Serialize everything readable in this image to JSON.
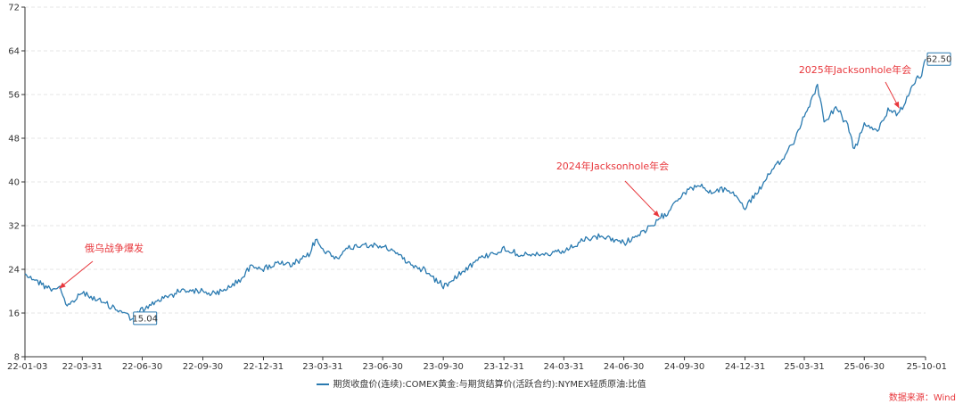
{
  "chart_data": {
    "type": "line",
    "title": "",
    "xlabel": "",
    "ylabel": "",
    "ylim": [
      8,
      72
    ],
    "y_ticks": [
      8,
      16,
      24,
      32,
      40,
      48,
      56,
      64,
      72
    ],
    "x_ticks": [
      "22-01-03",
      "22-03-31",
      "22-06-30",
      "22-09-30",
      "22-12-31",
      "23-03-31",
      "23-06-30",
      "23-09-30",
      "23-12-31",
      "24-03-31",
      "24-06-30",
      "24-09-30",
      "24-12-31",
      "25-03-31",
      "25-06-30",
      "25-10-01"
    ],
    "grid": "horizontal dashed",
    "series": [
      {
        "name": "期货收盘价(连续):COMEX黄金:与期货结算价(活跃合约):NYMEX轻质原油:比值",
        "color": "#2a7ab0",
        "points": [
          [
            "22-01-03",
            23.2
          ],
          [
            "22-01-20",
            22.0
          ],
          [
            "22-02-10",
            20.4
          ],
          [
            "22-02-25",
            20.8
          ],
          [
            "22-03-08",
            17.0
          ],
          [
            "22-03-31",
            19.8
          ],
          [
            "22-04-20",
            18.6
          ],
          [
            "22-05-10",
            17.4
          ],
          [
            "22-05-31",
            16.2
          ],
          [
            "22-06-14",
            15.04
          ],
          [
            "22-06-30",
            16.5
          ],
          [
            "22-07-20",
            18.0
          ],
          [
            "22-08-10",
            19.2
          ],
          [
            "22-08-31",
            20.3
          ],
          [
            "22-09-30",
            20.0
          ],
          [
            "22-10-20",
            19.4
          ],
          [
            "22-11-10",
            20.8
          ],
          [
            "22-11-30",
            22.6
          ],
          [
            "22-12-15",
            25.0
          ],
          [
            "22-12-31",
            24.0
          ],
          [
            "23-01-20",
            25.2
          ],
          [
            "23-02-10",
            24.6
          ],
          [
            "23-03-10",
            26.5
          ],
          [
            "23-03-20",
            29.5
          ],
          [
            "23-03-31",
            27.6
          ],
          [
            "23-04-20",
            26.2
          ],
          [
            "23-05-10",
            27.8
          ],
          [
            "23-05-31",
            28.6
          ],
          [
            "23-06-30",
            28.0
          ],
          [
            "23-07-20",
            27.2
          ],
          [
            "23-08-10",
            25.0
          ],
          [
            "23-08-31",
            24.0
          ],
          [
            "23-09-15",
            22.4
          ],
          [
            "23-09-30",
            21.0
          ],
          [
            "23-10-20",
            22.8
          ],
          [
            "23-11-10",
            24.8
          ],
          [
            "23-11-30",
            26.4
          ],
          [
            "23-12-31",
            27.6
          ],
          [
            "24-01-20",
            27.0
          ],
          [
            "24-02-10",
            26.4
          ],
          [
            "24-03-10",
            26.8
          ],
          [
            "24-03-31",
            27.2
          ],
          [
            "24-04-20",
            28.6
          ],
          [
            "24-05-10",
            29.6
          ],
          [
            "24-05-31",
            30.0
          ],
          [
            "24-06-30",
            28.8
          ],
          [
            "24-07-20",
            30.2
          ],
          [
            "24-08-10",
            31.6
          ],
          [
            "24-08-31",
            34.0
          ],
          [
            "24-09-15",
            36.2
          ],
          [
            "24-09-30",
            38.2
          ],
          [
            "24-10-20",
            39.4
          ],
          [
            "24-11-10",
            38.0
          ],
          [
            "24-11-30",
            38.8
          ],
          [
            "24-12-15",
            37.8
          ],
          [
            "24-12-31",
            35.2
          ],
          [
            "25-01-20",
            38.4
          ],
          [
            "25-02-10",
            42.0
          ],
          [
            "25-02-28",
            44.4
          ],
          [
            "25-03-15",
            47.6
          ],
          [
            "25-03-31",
            52.0
          ],
          [
            "25-04-10",
            54.8
          ],
          [
            "25-04-20",
            57.8
          ],
          [
            "25-04-30",
            51.2
          ],
          [
            "25-05-20",
            53.6
          ],
          [
            "25-06-05",
            50.0
          ],
          [
            "25-06-15",
            46.0
          ],
          [
            "25-06-30",
            50.4
          ],
          [
            "25-07-20",
            49.4
          ],
          [
            "25-08-05",
            53.2
          ],
          [
            "25-08-20",
            52.6
          ],
          [
            "25-09-05",
            55.4
          ],
          [
            "25-09-15",
            58.6
          ],
          [
            "25-09-25",
            59.2
          ],
          [
            "25-10-01",
            62.5
          ]
        ]
      }
    ],
    "point_labels": [
      {
        "date": "22-06-14",
        "value": 15.04,
        "text": "15.04"
      },
      {
        "date": "25-10-01",
        "value": 62.5,
        "text": "62.50"
      }
    ],
    "annotations": [
      {
        "text": "俄乌战争爆发",
        "arrow_to": [
          "22-02-24",
          20.5
        ]
      },
      {
        "text": "2024年Jacksonhole年会",
        "arrow_to": [
          "24-08-23",
          33.6
        ]
      },
      {
        "text": "2025年Jacksonhole年会",
        "arrow_to": [
          "25-08-22",
          53.5
        ]
      }
    ],
    "legend_position": "bottom-center"
  },
  "legend": {
    "label": "期货收盘价(连续):COMEX黄金:与期货结算价(活跃合约):NYMEX轻质原油:比值"
  },
  "source": "数据来源：Wind"
}
